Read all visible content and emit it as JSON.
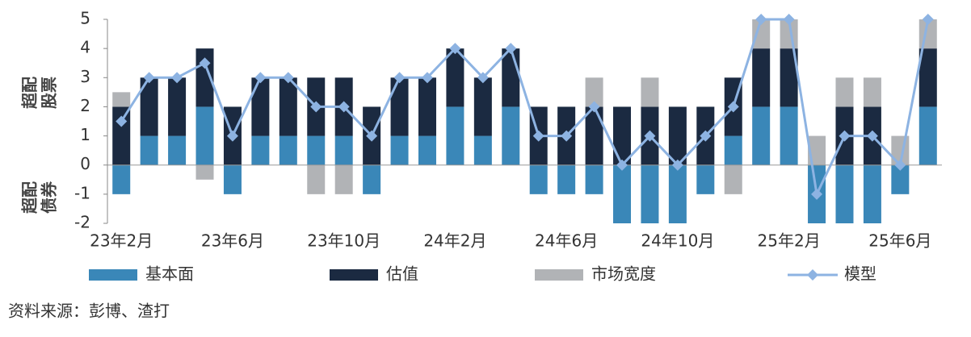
{
  "chart_data": {
    "type": "bar",
    "categories": [
      "23年2月",
      null,
      null,
      null,
      "23年6月",
      null,
      null,
      null,
      "23年10月",
      null,
      null,
      null,
      "24年2月",
      null,
      null,
      null,
      "24年6月",
      null,
      null,
      null,
      "24年10月",
      null,
      null,
      null,
      "25年2月",
      null,
      null,
      null,
      "25年6月",
      null
    ],
    "series": [
      {
        "name": "基本面",
        "color": "#3a87b8",
        "values": [
          -1,
          1,
          1,
          2,
          -1,
          1,
          1,
          1,
          1,
          -1,
          1,
          1,
          2,
          1,
          2,
          -1,
          -1,
          -1,
          -2,
          -2,
          -2,
          -1,
          1,
          2,
          2,
          -2,
          -2,
          -2,
          -1,
          2
        ]
      },
      {
        "name": "估值",
        "color": "#1b2a41",
        "values": [
          2,
          2,
          2,
          2,
          2,
          2,
          2,
          2,
          2,
          2,
          2,
          2,
          2,
          2,
          2,
          2,
          2,
          2,
          2,
          2,
          2,
          2,
          2,
          2,
          2,
          0,
          2,
          2,
          0,
          2
        ]
      },
      {
        "name": "市场宽度",
        "color": "#b1b3b6",
        "values": [
          0.5,
          0,
          0,
          -0.5,
          0,
          0,
          0,
          -1,
          -1,
          0,
          0,
          0,
          0,
          0,
          0,
          0,
          0,
          1,
          0,
          1,
          0,
          0,
          -1,
          1,
          1,
          1,
          1,
          1,
          1,
          1
        ]
      },
      {
        "name": "模型",
        "type": "line",
        "color": "#8db3e2",
        "values": [
          1.5,
          3,
          3,
          3.5,
          1,
          3,
          3,
          2,
          2,
          1,
          3,
          3,
          4,
          3,
          4,
          1,
          1,
          2,
          0,
          1,
          0,
          1,
          2,
          5,
          5,
          -1,
          1,
          1,
          0,
          5
        ]
      }
    ],
    "y_label_top": [
      "超配",
      "股票"
    ],
    "y_label_bottom": [
      "超配",
      "债券"
    ],
    "ylim": [
      -2,
      5
    ],
    "yticks": [
      -2,
      -1,
      0,
      1,
      2,
      3,
      4,
      5
    ],
    "source": "资料来源：彭博、渣打"
  }
}
